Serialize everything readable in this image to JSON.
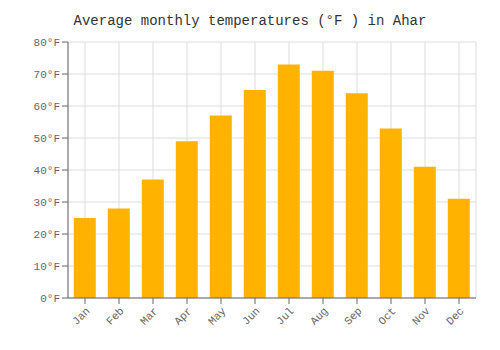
{
  "chart_data": {
    "type": "bar",
    "title": "Average monthly temperatures (°F ) in Ahar",
    "categories": [
      "Jan",
      "Feb",
      "Mar",
      "Apr",
      "May",
      "Jun",
      "Jul",
      "Aug",
      "Sep",
      "Oct",
      "Nov",
      "Dec"
    ],
    "values": [
      25,
      28,
      37,
      49,
      57,
      65,
      73,
      71,
      64,
      53,
      41,
      31
    ],
    "color": "#FFB300",
    "ylim": [
      0,
      80
    ],
    "yticks": [
      {
        "value": 0,
        "label": "0°F"
      },
      {
        "value": 10,
        "label": "10°F"
      },
      {
        "value": 20,
        "label": "20°F"
      },
      {
        "value": 30,
        "label": "30°F"
      },
      {
        "value": 40,
        "label": "40°F"
      },
      {
        "value": 50,
        "label": "50°F"
      },
      {
        "value": 60,
        "label": "60°F"
      },
      {
        "value": 70,
        "label": "70°F"
      },
      {
        "value": 80,
        "label": "80°F"
      }
    ],
    "grid": true
  }
}
